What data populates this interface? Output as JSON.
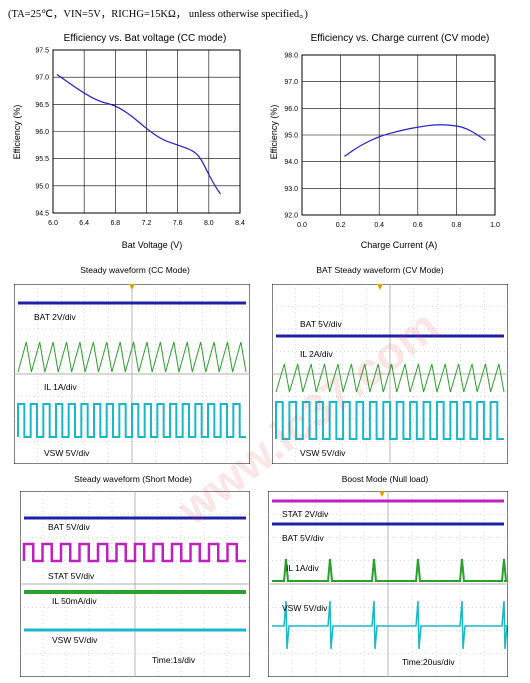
{
  "conditions": "(TA=25℃，VIN=5V，RICHG=15KΩ，  unless otherwise specified。)",
  "chart_data": [
    {
      "type": "line",
      "title": "Efficiency vs. Bat voltage (CC mode)",
      "xlabel": "Bat Voltage (V)",
      "ylabel": "Efficiency (%)",
      "xlim": [
        6.0,
        8.4
      ],
      "ylim": [
        94.5,
        97.5
      ],
      "xticks": [
        "6.0",
        "6.4",
        "6.8",
        "7.2",
        "7.6",
        "8.0",
        "8.4"
      ],
      "yticks": [
        "97.5",
        "97.0",
        "96.5",
        "96.0",
        "95.5",
        "95.0",
        "94.5"
      ],
      "grid": true,
      "series": [
        {
          "x": [
            6.05,
            6.2,
            6.4,
            6.6,
            6.8,
            7.0,
            7.2,
            7.4,
            7.6,
            7.8,
            7.9,
            8.0,
            8.1,
            8.15
          ],
          "y": [
            97.05,
            96.9,
            96.7,
            96.55,
            96.48,
            96.3,
            96.05,
            95.85,
            95.75,
            95.65,
            95.5,
            95.2,
            94.95,
            94.85
          ]
        }
      ]
    },
    {
      "type": "line",
      "title": "Efficiency vs. Charge current (CV mode)",
      "xlabel": "Charge Current (A)",
      "ylabel": "Efficiency (%)",
      "xlim": [
        0.0,
        1.0
      ],
      "ylim": [
        92.0,
        98.0
      ],
      "xticks": [
        "0.0",
        "0.2",
        "0.4",
        "0.6",
        "0.8",
        "1.0"
      ],
      "yticks": [
        "98.0",
        "97.0",
        "96.0",
        "95.0",
        "94.0",
        "93.0",
        "92.0"
      ],
      "grid": true,
      "series": [
        {
          "x": [
            0.22,
            0.3,
            0.4,
            0.5,
            0.6,
            0.7,
            0.8,
            0.85,
            0.9,
            0.95
          ],
          "y": [
            94.2,
            94.6,
            94.95,
            95.15,
            95.3,
            95.4,
            95.35,
            95.25,
            95.05,
            94.8
          ]
        }
      ]
    }
  ],
  "scopes": [
    {
      "title": "Steady waveform (CC Mode)",
      "labels": [
        "BAT    2V/div",
        "IL      1A/div",
        "VSW    5V/div"
      ]
    },
    {
      "title": "BAT Steady waveform (CV Mode)",
      "labels": [
        "BAT    5V/div",
        "IL      2A/div",
        "VSW    5V/div"
      ]
    },
    {
      "title": "Steady waveform (Short Mode)",
      "labels": [
        "BAT    5V/div",
        "STAT    5V/div",
        "IL     50mA/div",
        "VSW    5V/div",
        "Time:1s/div"
      ]
    },
    {
      "title": "Boost Mode (Null load)",
      "labels": [
        "STAT    2V/div",
        "BAT     5V/div",
        "IL      1A/div",
        "VSW    5V/div",
        "Time:20us/div"
      ]
    }
  ],
  "colors": {
    "blue": "#1f1fa8",
    "green": "#2ca02c",
    "cyan": "#18b8c8",
    "magenta": "#c020c0",
    "curve": "#2020c8",
    "grid": "#000000"
  },
  "watermark": "www.ic37.com"
}
